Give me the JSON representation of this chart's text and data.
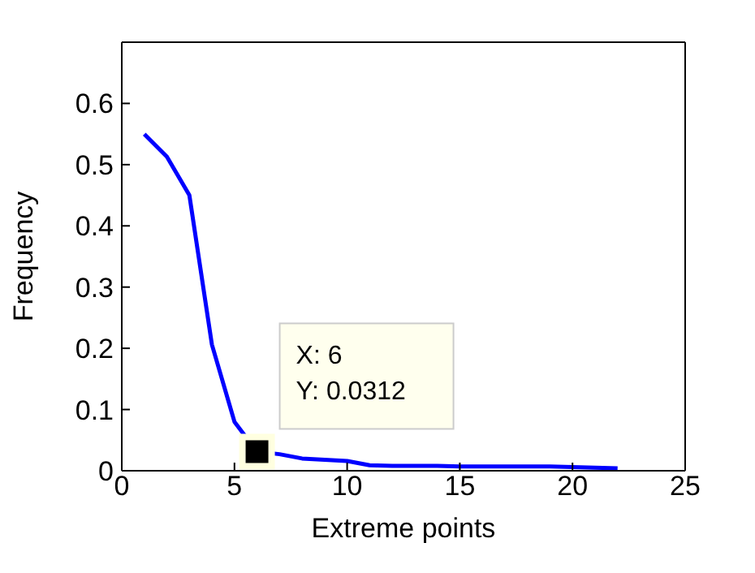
{
  "chart_data": {
    "type": "line",
    "xlabel": "Extreme points",
    "ylabel": "Frequency",
    "x": [
      1,
      2,
      3,
      4,
      5,
      6,
      7,
      8,
      9,
      10,
      11,
      12,
      13,
      14,
      15,
      16,
      17,
      18,
      19,
      20,
      21,
      22
    ],
    "series": [
      {
        "color": "#0000ff",
        "values": [
          0.55,
          0.513,
          0.45,
          0.206,
          0.08,
          0.0312,
          0.027,
          0.02,
          0.018,
          0.016,
          0.009,
          0.008,
          0.008,
          0.008,
          0.007,
          0.007,
          0.007,
          0.007,
          0.007,
          0.006,
          0.005,
          0.004
        ]
      }
    ],
    "xlim": [
      0,
      25
    ],
    "xticks": [
      0,
      5,
      10,
      15,
      20,
      25
    ],
    "ylim": [
      0,
      0.7
    ],
    "yticks": [
      0,
      0.1,
      0.2,
      0.3,
      0.4,
      0.5,
      0.6
    ],
    "grid": false,
    "legend": false,
    "marker": "none",
    "annotations": [
      {
        "text": "X: 6\nY: 0.0312",
        "x": 6,
        "y": 0.0312
      }
    ]
  }
}
